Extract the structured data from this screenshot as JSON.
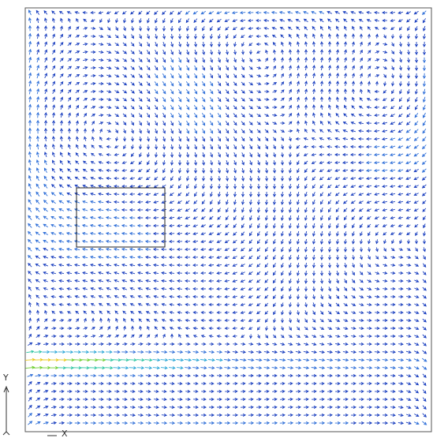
{
  "axes": {
    "y_label": "Y",
    "x_label": "X"
  }
}
